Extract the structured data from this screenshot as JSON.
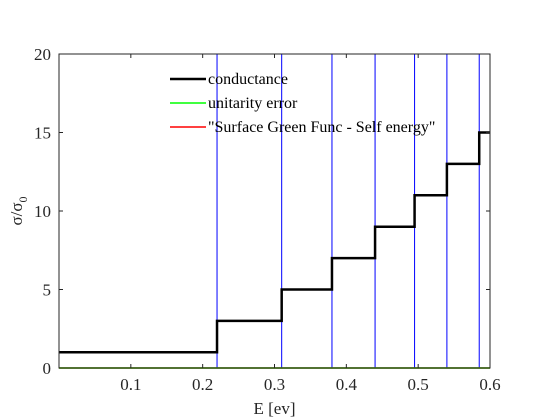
{
  "chart_data": {
    "type": "line",
    "xlabel": "E [ev]",
    "ylabel": {
      "base": "σ/σ",
      "sub": "0"
    },
    "xlim": [
      0,
      0.6
    ],
    "ylim": [
      0,
      20
    ],
    "x_ticks": [
      0.1,
      0.2,
      0.3,
      0.4,
      0.5,
      0.6
    ],
    "x_tick_labels": [
      "0.1",
      "0.2",
      "0.3",
      "0.4",
      "0.5",
      "0.6"
    ],
    "y_ticks": [
      0,
      5,
      10,
      15,
      20
    ],
    "y_tick_labels": [
      "0",
      "5",
      "10",
      "15",
      "20"
    ],
    "grid": false,
    "legend_position": "top-center",
    "band_edges": [
      0.22,
      0.31,
      0.38,
      0.44,
      0.495,
      0.54,
      0.585
    ],
    "band_edge_color": "#0000ff",
    "series": [
      {
        "name": "conductance",
        "color": "#000000",
        "x": [
          0.0,
          0.22,
          0.22,
          0.31,
          0.31,
          0.38,
          0.38,
          0.44,
          0.44,
          0.495,
          0.495,
          0.54,
          0.54,
          0.585,
          0.585,
          0.6
        ],
        "y": [
          1,
          1,
          3,
          3,
          5,
          5,
          7,
          7,
          9,
          9,
          11,
          11,
          13,
          13,
          15,
          15
        ]
      },
      {
        "name": "unitarity error",
        "color": "#00ff00",
        "x": [
          0.0,
          0.6
        ],
        "y": [
          0,
          0
        ]
      },
      {
        "name": "\"Surface Green Func - Self energy\"",
        "color": "#ff0000",
        "x": [
          0.0,
          0.6
        ],
        "y": [
          0,
          0
        ]
      }
    ]
  }
}
